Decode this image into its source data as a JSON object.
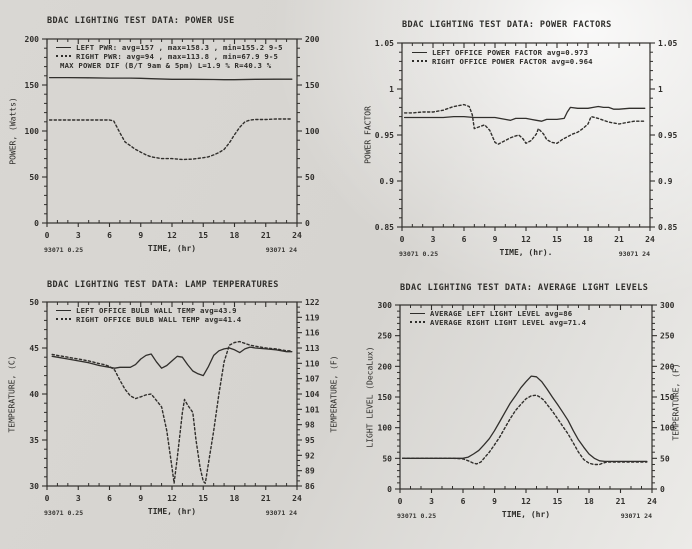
{
  "paper_color": "#d7d5d1",
  "ink_color": "#312f2c",
  "charts": [
    {
      "id": "power-use",
      "title": "BDAC LIGHTING TEST DATA: POWER USE",
      "ylabel": "POWER, (Watts)",
      "xlabel": "TIME, (hr)",
      "corner_left": "93071 0.25",
      "corner_right": "93071 24",
      "legend": [
        {
          "marker": "solid",
          "label": "LEFT PWR: avg=157 , max=158.3 , min=155.2 9-5"
        },
        {
          "marker": "dashed",
          "label": "RIGHT PWR: avg=94 , max=113.8 , min=67.9 9-5"
        },
        {
          "marker": "none",
          "label": "MAX POWER DIF (B/T 9am & 5pm) L=1.9 % R=40.3 %"
        }
      ],
      "chart_data": {
        "type": "line",
        "x_axis": {
          "min": 0,
          "max": 24,
          "major": 3,
          "minor": 1
        },
        "y_axis": {
          "min": 0,
          "max": 200,
          "major": 50,
          "minor": 10
        },
        "y2_axis": "mirror",
        "series": [
          {
            "name": "LEFT PWR",
            "style": "solid",
            "x": [
              0.25,
              2,
              4,
              6,
              8,
              9,
              10,
              12,
              14,
              16,
              17,
              18,
              20,
              22,
              23.5
            ],
            "y": [
              158,
              158,
              157.8,
              157.5,
              157.5,
              157.3,
              156.8,
              156.2,
              156.2,
              156,
              155.8,
              155.8,
              156.2,
              156.3,
              156.3
            ]
          },
          {
            "name": "RIGHT PWR",
            "style": "dashed",
            "x": [
              0.25,
              1,
              2,
              3,
              4,
              5,
              6,
              6.4,
              7,
              7.5,
              8,
              8.5,
              9,
              9.5,
              10,
              10.5,
              11,
              12,
              13,
              14,
              15,
              15.5,
              16,
              16.5,
              17,
              17.5,
              18,
              18.5,
              19,
              19.5,
              20,
              21,
              22,
              23,
              23.5
            ],
            "y": [
              112,
              112,
              112,
              112,
              112,
              112,
              112,
              111,
              98,
              88,
              84,
              80,
              77,
              74,
              72,
              71,
              70,
              70,
              69,
              69.5,
              71,
              72,
              74,
              76.5,
              80,
              87,
              96,
              104,
              110,
              112,
              112.5,
              112.5,
              113,
              113,
              113
            ]
          }
        ]
      }
    },
    {
      "id": "power-factors",
      "title": "BDAC LIGHTING TEST DATA: POWER FACTORS",
      "ylabel": "POWER FACTOR",
      "xlabel": "TIME, (hr).",
      "corner_left": "93071 0.25",
      "corner_right": "93071 24",
      "legend": [
        {
          "marker": "solid",
          "label": "LEFT OFFICE POWER FACTOR avg=0.973"
        },
        {
          "marker": "dashed",
          "label": "RIGHT OFFICE POWER FACTOR avg=0.964"
        }
      ],
      "chart_data": {
        "type": "line",
        "x_axis": {
          "min": 0,
          "max": 24,
          "major": 3,
          "minor": 1
        },
        "y_axis": {
          "min": 0.85,
          "max": 1.05,
          "major": 0.05,
          "minor": 0.01
        },
        "y2_axis": "mirror",
        "series": [
          {
            "name": "LEFT OFFICE POWER FACTOR",
            "style": "solid",
            "x": [
              0.25,
              2,
              4,
              5,
              6,
              7,
              8,
              9,
              10,
              10.5,
              11,
              12,
              12.5,
              13,
              13.5,
              14,
              15,
              15.7,
              16,
              16.3,
              17,
              18,
              18.5,
              19,
              19.5,
              20,
              20.5,
              21,
              22,
              23,
              23.5
            ],
            "y": [
              0.969,
              0.969,
              0.969,
              0.97,
              0.97,
              0.969,
              0.969,
              0.969,
              0.967,
              0.966,
              0.968,
              0.968,
              0.967,
              0.966,
              0.965,
              0.967,
              0.967,
              0.968,
              0.975,
              0.98,
              0.979,
              0.979,
              0.98,
              0.981,
              0.98,
              0.98,
              0.978,
              0.978,
              0.979,
              0.979,
              0.979
            ]
          },
          {
            "name": "RIGHT OFFICE POWER FACTOR",
            "style": "dashed",
            "x": [
              0.25,
              1,
              2,
              3,
              3.5,
              4,
              4.5,
              5,
              5.5,
              6,
              6.5,
              6.8,
              7,
              7.5,
              8,
              8.5,
              9,
              9.3,
              10,
              10.5,
              11,
              11.3,
              11.7,
              12,
              12.5,
              13,
              13.2,
              13.7,
              14,
              14.5,
              15,
              15.5,
              16,
              16.5,
              17,
              17.5,
              18,
              18.3,
              19,
              19.5,
              20,
              20.5,
              21,
              21.5,
              22,
              22.5,
              23,
              23.5
            ],
            "y": [
              0.974,
              0.974,
              0.975,
              0.975,
              0.976,
              0.977,
              0.979,
              0.981,
              0.982,
              0.983,
              0.981,
              0.972,
              0.957,
              0.959,
              0.961,
              0.955,
              0.942,
              0.94,
              0.944,
              0.947,
              0.949,
              0.95,
              0.946,
              0.941,
              0.944,
              0.951,
              0.957,
              0.951,
              0.945,
              0.942,
              0.941,
              0.945,
              0.948,
              0.951,
              0.953,
              0.957,
              0.962,
              0.97,
              0.968,
              0.966,
              0.964,
              0.963,
              0.962,
              0.963,
              0.964,
              0.965,
              0.965,
              0.965
            ]
          }
        ]
      }
    },
    {
      "id": "lamp-temperatures",
      "title": "BDAC LIGHTING TEST DATA: LAMP TEMPERATURES",
      "ylabel": "TEMPERATURE, (C)",
      "ylabel_right": "TEMPERATURE, (F)",
      "xlabel": "TIME, (hr)",
      "corner_left": "93071 0.25",
      "corner_right": "93071 24",
      "legend": [
        {
          "marker": "solid",
          "label": "LEFT OFFICE BULB WALL TEMP avg=43.9"
        },
        {
          "marker": "dashed",
          "label": "RIGHT OFFICE BULB WALL TEMP avg=41.4"
        }
      ],
      "chart_data": {
        "type": "line",
        "x_axis": {
          "min": 0,
          "max": 24,
          "major": 3,
          "minor": 1
        },
        "y_axis": {
          "min": 30,
          "max": 50,
          "major": 5,
          "minor": 1
        },
        "y2_axis": {
          "min": 86,
          "max": 122,
          "major": 3,
          "minor": 1
        },
        "series": [
          {
            "name": "LEFT OFFICE BULB WALL TEMP",
            "style": "solid",
            "x": [
              0.5,
              1,
              2,
              3,
              4,
              5,
              6,
              6.5,
              7,
              7.5,
              8,
              8.5,
              9,
              9.5,
              10,
              10.5,
              11,
              11.5,
              12,
              12.5,
              13,
              13.5,
              14,
              14.5,
              15,
              15.5,
              16,
              16.5,
              17,
              17.5,
              18,
              18.5,
              19,
              19.5,
              20,
              21,
              22,
              23,
              23.5
            ],
            "y": [
              44.1,
              44,
              43.8,
              43.6,
              43.4,
              43.1,
              42.9,
              42.8,
              42.9,
              42.9,
              42.9,
              43.2,
              43.8,
              44.2,
              44.35,
              43.5,
              42.8,
              43.1,
              43.6,
              44.1,
              44,
              43.2,
              42.5,
              42.2,
              42,
              43,
              44.2,
              44.7,
              44.9,
              45,
              44.8,
              44.5,
              44.9,
              45.1,
              45,
              44.9,
              44.8,
              44.6,
              44.6
            ]
          },
          {
            "name": "RIGHT OFFICE BULB WALL TEMP",
            "style": "dashed",
            "x": [
              0.5,
              1,
              2,
              3,
              4,
              5,
              5.5,
              6,
              6.5,
              7,
              7.5,
              8,
              8.5,
              9,
              9.5,
              10,
              10.5,
              11,
              11.5,
              12,
              12.2,
              12.5,
              13,
              13.2,
              13.5,
              14,
              14.3,
              14.7,
              15,
              15.2,
              15.5,
              16,
              16.5,
              17,
              17.5,
              18,
              18.5,
              19,
              19.5,
              20,
              21,
              22,
              23,
              23.5
            ],
            "y": [
              44.3,
              44.2,
              44,
              43.8,
              43.6,
              43.3,
              43.2,
              43,
              42.6,
              41.5,
              40.5,
              39.8,
              39.5,
              39.7,
              39.9,
              40,
              39.3,
              38.6,
              36,
              32,
              30.3,
              33,
              38,
              39.4,
              38.8,
              38,
              35,
              32,
              30.5,
              30.3,
              32.5,
              36,
              40,
              43.5,
              45.3,
              45.6,
              45.7,
              45.5,
              45.3,
              45.2,
              45,
              44.9,
              44.7,
              44.7
            ]
          }
        ]
      }
    },
    {
      "id": "average-light-levels",
      "title": "BDAC LIGHTING TEST DATA: AVERAGE LIGHT LEVELS",
      "ylabel": "LIGHT LEVEL (DecaLux)",
      "ylabel_right": "TEMPERATURE, (F)",
      "xlabel": "TIME, (hr)",
      "corner_left": "93071 0.25",
      "corner_right": "93071 24",
      "legend": [
        {
          "marker": "solid",
          "label": "AVERAGE LEFT LIGHT LEVEL avg=86"
        },
        {
          "marker": "dashed",
          "label": "AVERAGE RIGHT LIGHT LEVEL avg=71.4"
        }
      ],
      "chart_data": {
        "type": "line",
        "x_axis": {
          "min": 0,
          "max": 24,
          "major": 3,
          "minor": 1
        },
        "y_axis": {
          "min": 0,
          "max": 300,
          "major": 50,
          "minor": 10
        },
        "y2_axis": "mirror",
        "series": [
          {
            "name": "AVERAGE LEFT LIGHT LEVEL",
            "style": "solid",
            "x": [
              0.25,
              1,
              2,
              3,
              4,
              5,
              6,
              6.5,
              7,
              7.5,
              8,
              8.5,
              9,
              9.5,
              10,
              10.5,
              11,
              11.5,
              12,
              12.5,
              13,
              13.5,
              14,
              14.5,
              15,
              15.5,
              16,
              16.5,
              17,
              17.5,
              18,
              18.5,
              19,
              19.5,
              20,
              21,
              22,
              23,
              23.5
            ],
            "y": [
              50,
              50,
              50,
              50,
              50,
              50,
              50,
              52,
              57,
              63,
              72,
              82,
              95,
              110,
              125,
              140,
              152,
              165,
              175,
              184,
              183,
              175,
              163,
              150,
              138,
              125,
              112,
              95,
              80,
              68,
              57,
              50,
              46,
              45,
              45,
              45,
              45,
              45,
              45
            ]
          },
          {
            "name": "AVERAGE RIGHT LIGHT LEVEL",
            "style": "dashed",
            "x": [
              0.25,
              1,
              2,
              3,
              4,
              5,
              6,
              6.5,
              7,
              7.3,
              7.7,
              8,
              8.5,
              9,
              9.5,
              10,
              10.5,
              11,
              11.5,
              12,
              12.5,
              13,
              13.3,
              13.7,
              14,
              14.5,
              15,
              15.5,
              16,
              16.5,
              17,
              17.5,
              18,
              18.5,
              19,
              19.3,
              19.7,
              20,
              21,
              22,
              23,
              23.5
            ],
            "y": [
              50,
              50,
              50,
              50,
              50,
              50,
              49,
              46,
              42,
              41,
              44,
              50,
              60,
              72,
              85,
              100,
              115,
              128,
              138,
              147,
              152,
              153,
              150,
              145,
              138,
              127,
              115,
              102,
              90,
              75,
              60,
              48,
              42,
              40,
              40,
              42,
              44,
              44,
              44,
              44,
              44,
              44
            ]
          }
        ]
      }
    }
  ]
}
